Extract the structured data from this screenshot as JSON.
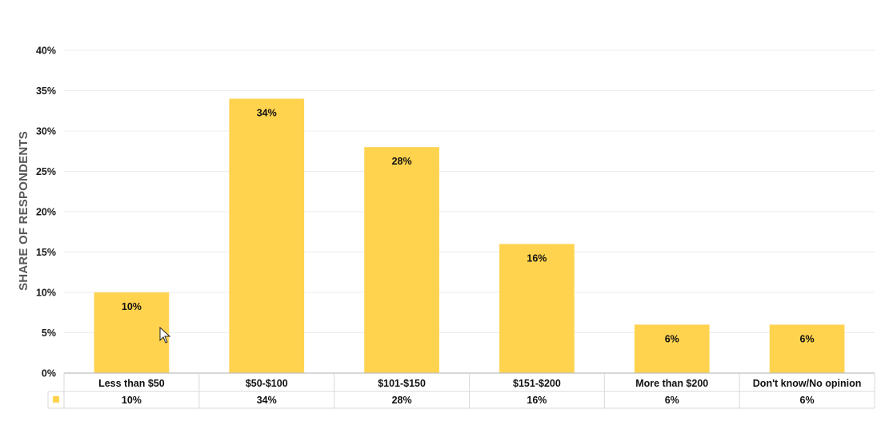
{
  "chart_data": {
    "type": "bar",
    "title": "",
    "xlabel": "",
    "ylabel": "SHARE OF RESPONDENTS",
    "categories": [
      "Less than $50",
      "$50-$100",
      "$101-$150",
      "$151-$200",
      "More than $200",
      "Don't know/No opinion"
    ],
    "series": [
      {
        "values": [
          10,
          34,
          28,
          16,
          6,
          6
        ],
        "labels": [
          "10%",
          "34%",
          "28%",
          "16%",
          "6%",
          "6%"
        ],
        "color": "#FFD34E"
      }
    ],
    "ylim": [
      0,
      40
    ],
    "yticks": [
      "0%",
      "5%",
      "10%",
      "15%",
      "20%",
      "25%",
      "30%",
      "35%",
      "40%"
    ],
    "grid": true,
    "data_table": true,
    "table_row": [
      "10%",
      "34%",
      "28%",
      "16%",
      "6%",
      "6%"
    ]
  }
}
